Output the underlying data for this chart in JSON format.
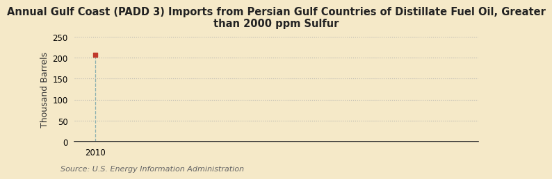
{
  "title": "Annual Gulf Coast (PADD 3) Imports from Persian Gulf Countries of Distillate Fuel Oil, Greater\nthan 2000 ppm Sulfur",
  "ylabel": "Thousand Barrels",
  "source": "Source: U.S. Energy Information Administration",
  "x_data": [
    2010
  ],
  "y_data": [
    207
  ],
  "xlim": [
    2009.3,
    2023
  ],
  "ylim": [
    0,
    250
  ],
  "yticks": [
    0,
    50,
    100,
    150,
    200,
    250
  ],
  "xticks": [
    2010
  ],
  "background_color": "#f5e9c8",
  "plot_bg_color": "#f5e9c8",
  "data_point_color": "#c0392b",
  "data_line_color": "#8ab0b0",
  "grid_color": "#b0b0b0",
  "title_fontsize": 10.5,
  "ylabel_fontsize": 9,
  "source_fontsize": 8,
  "tick_fontsize": 8.5,
  "point_size": 25
}
